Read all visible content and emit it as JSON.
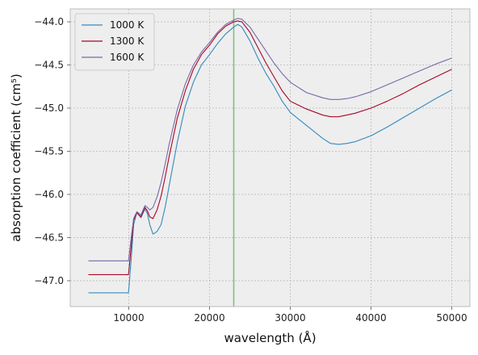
{
  "chart_data": {
    "type": "line",
    "title": "",
    "xlabel": "wavelength (Å)",
    "ylabel": "absorption coefficient (cm⁵)",
    "xlim": [
      2750,
      52250
    ],
    "ylim": [
      -47.3,
      -43.85
    ],
    "grid": true,
    "legend_position": "top-left",
    "xticks": [
      10000,
      20000,
      30000,
      40000,
      50000
    ],
    "xtick_labels": [
      "10000",
      "20000",
      "30000",
      "40000",
      "50000"
    ],
    "yticks": [
      -47.0,
      -46.5,
      -46.0,
      -45.5,
      -45.0,
      -44.5,
      -44.0
    ],
    "ytick_labels": [
      "−47.0",
      "−46.5",
      "−46.0",
      "−45.5",
      "−45.0",
      "−44.5",
      "−44.0"
    ],
    "vline": {
      "x": 23000,
      "color": "#77c07b"
    },
    "colors": {
      "background": "#eeeeee",
      "grid": "#b9b9b9",
      "frame": "#bcbcbc"
    },
    "series": [
      {
        "name": "1000 K",
        "color": "#348abd",
        "x": [
          5000,
          9950,
          10000,
          10300,
          10600,
          11000,
          11500,
          12000,
          12300,
          12600,
          13000,
          13500,
          14000,
          14500,
          15000,
          16000,
          17000,
          18000,
          19000,
          20000,
          21000,
          22000,
          23000,
          23500,
          24000,
          25000,
          26000,
          27000,
          28000,
          29000,
          30000,
          32000,
          34000,
          35000,
          36000,
          37000,
          38000,
          40000,
          42000,
          44000,
          46000,
          48000,
          50000
        ],
        "y": [
          -47.14,
          -47.14,
          -47.1,
          -46.75,
          -46.35,
          -46.21,
          -46.27,
          -46.17,
          -46.22,
          -46.35,
          -46.46,
          -46.43,
          -46.35,
          -46.15,
          -45.9,
          -45.4,
          -44.98,
          -44.7,
          -44.5,
          -44.38,
          -44.25,
          -44.14,
          -44.06,
          -44.03,
          -44.06,
          -44.22,
          -44.42,
          -44.6,
          -44.75,
          -44.92,
          -45.05,
          -45.2,
          -45.35,
          -45.41,
          -45.42,
          -45.41,
          -45.39,
          -45.32,
          -45.22,
          -45.11,
          -45.0,
          -44.89,
          -44.79
        ]
      },
      {
        "name": "1300 K",
        "color": "#a60628",
        "x": [
          5000,
          9950,
          10000,
          10300,
          10600,
          11000,
          11500,
          12000,
          12300,
          12600,
          13000,
          13500,
          14000,
          14500,
          15000,
          16000,
          17000,
          18000,
          19000,
          20000,
          21000,
          22000,
          23000,
          23500,
          24000,
          25000,
          26000,
          27000,
          28000,
          29000,
          30000,
          32000,
          34000,
          35000,
          36000,
          37000,
          38000,
          40000,
          42000,
          44000,
          46000,
          48000,
          50000
        ],
        "y": [
          -46.93,
          -46.93,
          -46.9,
          -46.6,
          -46.3,
          -46.21,
          -46.26,
          -46.15,
          -46.19,
          -46.26,
          -46.28,
          -46.18,
          -46.02,
          -45.8,
          -45.56,
          -45.12,
          -44.8,
          -44.55,
          -44.38,
          -44.27,
          -44.14,
          -44.05,
          -44.0,
          -43.99,
          -44.0,
          -44.12,
          -44.3,
          -44.48,
          -44.64,
          -44.8,
          -44.92,
          -45.01,
          -45.08,
          -45.1,
          -45.1,
          -45.08,
          -45.06,
          -45.0,
          -44.92,
          -44.83,
          -44.73,
          -44.64,
          -44.55
        ]
      },
      {
        "name": "1600 K",
        "color": "#7a68a6",
        "x": [
          5000,
          9950,
          10000,
          10300,
          10600,
          11000,
          11500,
          12000,
          12300,
          12600,
          13000,
          13500,
          14000,
          14500,
          15000,
          16000,
          17000,
          18000,
          19000,
          20000,
          21000,
          22000,
          23000,
          23500,
          24000,
          25000,
          26000,
          27000,
          28000,
          29000,
          30000,
          32000,
          34000,
          35000,
          36000,
          37000,
          38000,
          40000,
          42000,
          44000,
          46000,
          48000,
          50000
        ],
        "y": [
          -46.77,
          -46.77,
          -46.74,
          -46.5,
          -46.28,
          -46.2,
          -46.24,
          -46.13,
          -46.15,
          -46.18,
          -46.15,
          -46.03,
          -45.86,
          -45.65,
          -45.42,
          -45.02,
          -44.72,
          -44.5,
          -44.35,
          -44.24,
          -44.12,
          -44.03,
          -43.98,
          -43.96,
          -43.97,
          -44.06,
          -44.2,
          -44.34,
          -44.48,
          -44.6,
          -44.7,
          -44.82,
          -44.88,
          -44.9,
          -44.9,
          -44.89,
          -44.87,
          -44.81,
          -44.73,
          -44.65,
          -44.57,
          -44.49,
          -44.42
        ]
      }
    ]
  }
}
